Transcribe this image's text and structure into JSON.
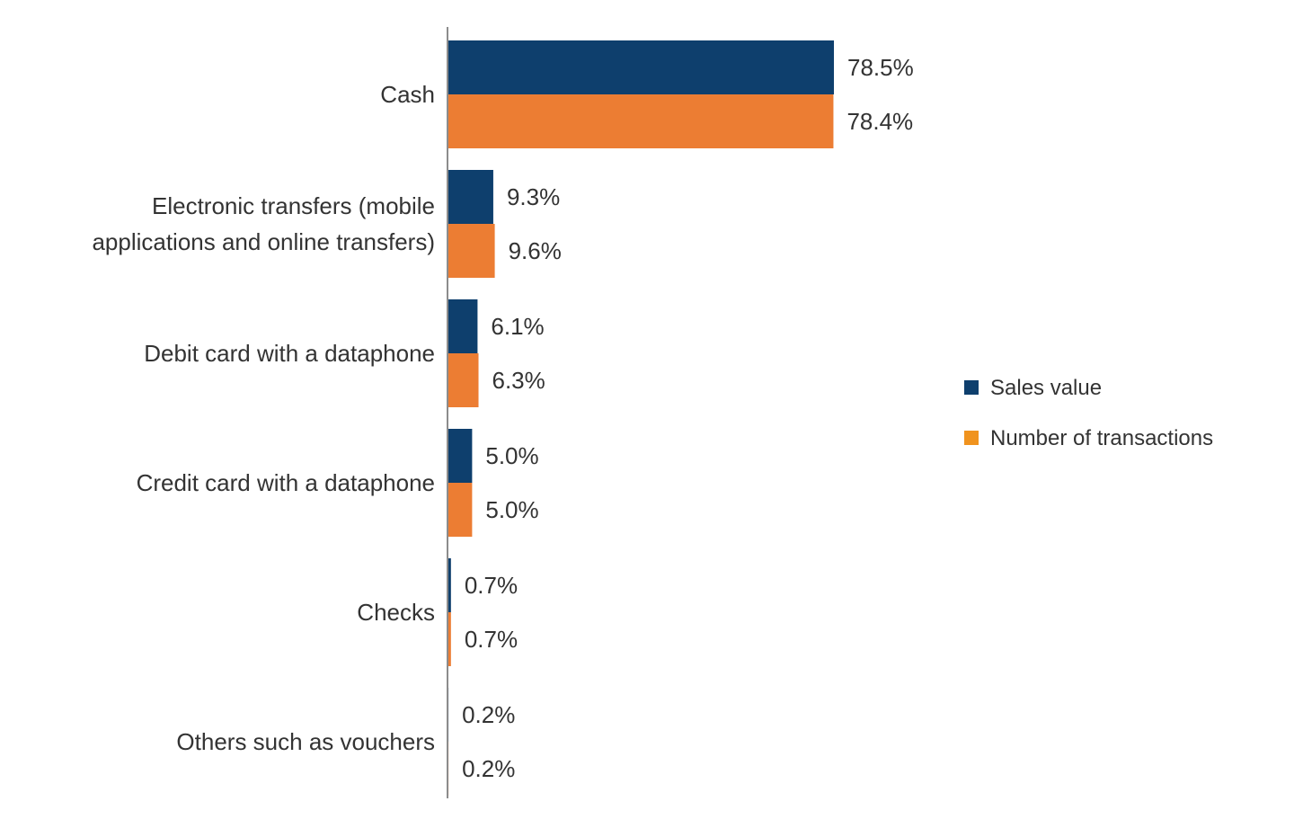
{
  "chart_data": {
    "type": "bar",
    "orientation": "horizontal",
    "categories": [
      [
        "Cash"
      ],
      [
        "Electronic transfers (mobile",
        "applications and online transfers)"
      ],
      [
        "Debit card with a dataphone"
      ],
      [
        "Credit card with a dataphone"
      ],
      [
        "Checks"
      ],
      [
        "Others such as vouchers"
      ]
    ],
    "series": [
      {
        "name": "Sales value",
        "values": [
          78.5,
          9.3,
          6.1,
          5.0,
          0.7,
          0.2
        ],
        "labels": [
          "78.5%",
          "9.3%",
          "6.1%",
          "5.0%",
          "0.7%",
          "0.2%"
        ],
        "color": "#0e3f6d",
        "legend_color": "#0e3f6d"
      },
      {
        "name": "Number of transactions",
        "values": [
          78.4,
          9.6,
          6.3,
          5.0,
          0.7,
          0.2
        ],
        "labels": [
          "78.4%",
          "9.6%",
          "6.3%",
          "5.0%",
          "0.7%",
          "0.2%"
        ],
        "color": "#ec7d33",
        "legend_color": "#f0931e"
      }
    ],
    "xlim": [
      0,
      100
    ],
    "grid": false,
    "legend_position": "right",
    "axis_color": "#8c8c8c"
  }
}
